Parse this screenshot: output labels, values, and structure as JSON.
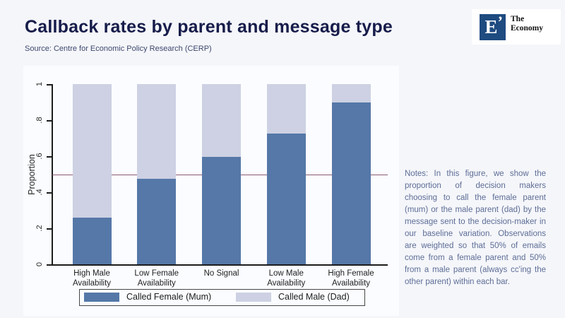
{
  "page": {
    "title": "Callback rates by parent and message type",
    "source": "Source: Centre for Economic Policy Research (CERP)"
  },
  "logo": {
    "letter": "E",
    "mark": "’",
    "name_line1": "The",
    "name_line2": "Economy",
    "square_color": "#1e4b80"
  },
  "notes": {
    "text": "Notes: In this figure, we show the proportion of decision makers choosing to call the female parent (mum) or the male parent (dad) by the message sent to the decision-maker in our baseline variation. Observations are weighted so that 50% of emails come from a female parent and 50% from a male parent (always cc'ing the other parent) within each bar."
  },
  "chart_data": {
    "type": "bar",
    "stacked": true,
    "title": "",
    "xlabel": "",
    "ylabel": "Proportion",
    "ylim": [
      0,
      1
    ],
    "ytick_labels": [
      "0",
      ".2",
      ".4",
      ".6",
      ".8",
      "1"
    ],
    "ytick_values": [
      0,
      0.2,
      0.4,
      0.6,
      0.8,
      1
    ],
    "grid": false,
    "legend_position": "bottom",
    "refline": {
      "value": 0.5,
      "color": "#8c5a73",
      "behind_bars": true
    },
    "categories": [
      "High Male\nAvailability",
      "Low Female\nAvailability",
      "No Signal",
      "Low Male\nAvailability",
      "High Female\nAvailability"
    ],
    "series": [
      {
        "name": "Called Female (Mum)",
        "color": "#5578a8",
        "values": [
          0.26,
          0.475,
          0.595,
          0.725,
          0.9
        ]
      },
      {
        "name": "Called Male (Dad)",
        "color": "#cdd1e3",
        "values": [
          0.74,
          0.525,
          0.405,
          0.275,
          0.1
        ]
      }
    ],
    "axis_color": "#1c1c1c"
  }
}
